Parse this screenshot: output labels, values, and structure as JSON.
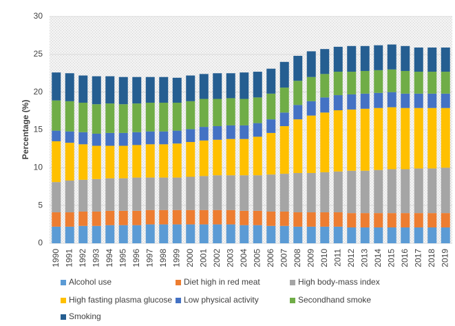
{
  "chart_data": {
    "type": "stacked-bar",
    "y_label": "Percentage (%)",
    "categories": [
      "1990",
      "1991",
      "1992",
      "1993",
      "1994",
      "1995",
      "1996",
      "1997",
      "1998",
      "1999",
      "2000",
      "2001",
      "2002",
      "2003",
      "2004",
      "2005",
      "2006",
      "2007",
      "2008",
      "2009",
      "2010",
      "2011",
      "2012",
      "2013",
      "2014",
      "2015",
      "2016",
      "2017",
      "2018",
      "2019"
    ],
    "series": [
      {
        "name": "Alcohol use",
        "color": "#5b9bd5",
        "values": [
          2.2,
          2.2,
          2.3,
          2.3,
          2.4,
          2.4,
          2.4,
          2.5,
          2.5,
          2.5,
          2.5,
          2.5,
          2.5,
          2.5,
          2.4,
          2.4,
          2.3,
          2.3,
          2.2,
          2.2,
          2.2,
          2.2,
          2.1,
          2.1,
          2.1,
          2.1,
          2.1,
          2.1,
          2.1,
          2.1
        ]
      },
      {
        "name": "Diet high in red meat",
        "color": "#ed7d31",
        "values": [
          1.9,
          1.9,
          1.9,
          1.9,
          1.9,
          1.9,
          1.9,
          1.9,
          1.9,
          1.9,
          1.9,
          1.9,
          1.9,
          1.9,
          1.9,
          1.9,
          1.9,
          1.9,
          1.9,
          1.9,
          1.9,
          1.9,
          1.9,
          1.9,
          1.9,
          1.9,
          1.9,
          1.9,
          1.9,
          1.9
        ]
      },
      {
        "name": "High body-mass index",
        "color": "#a5a5a5",
        "values": [
          4.0,
          4.2,
          4.2,
          4.3,
          4.3,
          4.3,
          4.4,
          4.3,
          4.3,
          4.3,
          4.4,
          4.5,
          4.6,
          4.6,
          4.7,
          4.7,
          4.9,
          5.0,
          5.2,
          5.2,
          5.3,
          5.4,
          5.6,
          5.6,
          5.7,
          5.8,
          5.8,
          5.9,
          5.9,
          6.0
        ]
      },
      {
        "name": "High fasting plasma glucose",
        "color": "#ffc000",
        "values": [
          5.4,
          5.0,
          4.7,
          4.4,
          4.3,
          4.3,
          4.3,
          4.4,
          4.4,
          4.5,
          4.6,
          4.7,
          4.7,
          4.8,
          4.8,
          5.1,
          5.5,
          6.3,
          7.1,
          7.6,
          7.9,
          8.1,
          8.1,
          8.2,
          8.2,
          8.2,
          8.1,
          8.0,
          8.0,
          7.9
        ]
      },
      {
        "name": "Low physical activity",
        "color": "#4472c4",
        "values": [
          1.4,
          1.5,
          1.6,
          1.6,
          1.7,
          1.7,
          1.7,
          1.7,
          1.7,
          1.7,
          1.7,
          1.8,
          1.8,
          1.8,
          1.8,
          1.8,
          1.8,
          1.8,
          1.9,
          1.9,
          2.0,
          2.0,
          2.0,
          2.0,
          2.0,
          2.0,
          1.9,
          1.9,
          1.9,
          1.9
        ]
      },
      {
        "name": "Secondhand smoke",
        "color": "#70ad47",
        "values": [
          4.0,
          4.0,
          3.9,
          3.9,
          3.9,
          3.8,
          3.8,
          3.8,
          3.8,
          3.7,
          3.7,
          3.7,
          3.6,
          3.6,
          3.5,
          3.4,
          3.4,
          3.3,
          3.2,
          3.2,
          3.1,
          3.1,
          3.0,
          3.0,
          3.0,
          3.0,
          3.0,
          2.9,
          2.9,
          2.9
        ]
      },
      {
        "name": "Smoking",
        "color": "#255e91",
        "values": [
          3.7,
          3.7,
          3.6,
          3.7,
          3.6,
          3.6,
          3.5,
          3.4,
          3.4,
          3.3,
          3.4,
          3.3,
          3.4,
          3.3,
          3.5,
          3.4,
          3.3,
          3.4,
          3.3,
          3.4,
          3.3,
          3.3,
          3.4,
          3.3,
          3.3,
          3.3,
          3.3,
          3.2,
          3.2,
          3.2
        ]
      }
    ],
    "ylim": [
      0,
      30
    ],
    "yticks": [
      0,
      5,
      10,
      15,
      20,
      25,
      30
    ],
    "grid": true
  }
}
